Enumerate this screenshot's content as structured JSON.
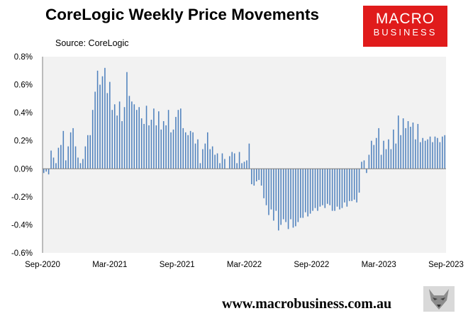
{
  "header": {
    "title": "CoreLogic Weekly Price Movements",
    "source": "Source: CoreLogic"
  },
  "logo": {
    "line1": "MACRO",
    "line2": "BUSINESS"
  },
  "footer": {
    "url": "www.macrobusiness.com.au"
  },
  "colors": {
    "bar": "#4f81bd",
    "plot_bg": "#f2f2f2",
    "logo_bg": "#e01b1b"
  },
  "chart_data": {
    "type": "bar",
    "title": "CoreLogic Weekly Price Movements",
    "unit": "%",
    "ylim": [
      -0.6,
      0.8
    ],
    "yticks": [
      "0.8%",
      "0.6%",
      "0.4%",
      "0.2%",
      "0.0%",
      "-0.2%",
      "-0.4%",
      "-0.6%"
    ],
    "ytick_values": [
      0.8,
      0.6,
      0.4,
      0.2,
      0.0,
      -0.2,
      -0.4,
      -0.6
    ],
    "xticks": [
      "Sep-2020",
      "Mar-2021",
      "Sep-2021",
      "Mar-2022",
      "Sep-2022",
      "Mar-2023",
      "Sep-2023"
    ],
    "grid": false,
    "series": [
      {
        "values": [
          -0.03,
          -0.02,
          -0.04,
          0.13,
          0.08,
          0.04,
          0.15,
          0.17,
          0.27,
          0.06,
          0.16,
          0.26,
          0.29,
          0.16,
          0.08,
          0.04,
          0.07,
          0.16,
          0.24,
          0.24,
          0.42,
          0.55,
          0.7,
          0.6,
          0.66,
          0.72,
          0.54,
          0.62,
          0.42,
          0.46,
          0.38,
          0.48,
          0.34,
          0.44,
          0.69,
          0.52,
          0.48,
          0.46,
          0.42,
          0.44,
          0.36,
          0.32,
          0.45,
          0.31,
          0.35,
          0.43,
          0.31,
          0.41,
          0.28,
          0.34,
          0.31,
          0.42,
          0.26,
          0.28,
          0.37,
          0.42,
          0.43,
          0.29,
          0.26,
          0.24,
          0.27,
          0.26,
          0.18,
          0.21,
          0.04,
          0.14,
          0.18,
          0.26,
          0.14,
          0.16,
          0.1,
          0.11,
          0.04,
          0.11,
          0.07,
          0.0,
          0.09,
          0.12,
          0.11,
          0.04,
          0.12,
          0.04,
          0.05,
          0.06,
          0.18,
          -0.11,
          -0.12,
          -0.09,
          -0.08,
          -0.12,
          -0.21,
          -0.26,
          -0.33,
          -0.29,
          -0.37,
          -0.3,
          -0.44,
          -0.4,
          -0.36,
          -0.38,
          -0.43,
          -0.36,
          -0.42,
          -0.41,
          -0.38,
          -0.35,
          -0.35,
          -0.31,
          -0.34,
          -0.32,
          -0.3,
          -0.28,
          -0.3,
          -0.27,
          -0.26,
          -0.28,
          -0.25,
          -0.26,
          -0.3,
          -0.3,
          -0.27,
          -0.29,
          -0.28,
          -0.24,
          -0.27,
          -0.23,
          -0.23,
          -0.22,
          -0.24,
          -0.17,
          0.05,
          0.06,
          -0.03,
          0.1,
          0.2,
          0.17,
          0.22,
          0.29,
          0.1,
          0.2,
          0.14,
          0.21,
          0.14,
          0.28,
          0.18,
          0.38,
          0.24,
          0.36,
          0.29,
          0.34,
          0.3,
          0.33,
          0.21,
          0.32,
          0.19,
          0.22,
          0.2,
          0.21,
          0.23,
          0.19,
          0.23,
          0.22,
          0.19,
          0.23,
          0.24
        ]
      }
    ]
  }
}
